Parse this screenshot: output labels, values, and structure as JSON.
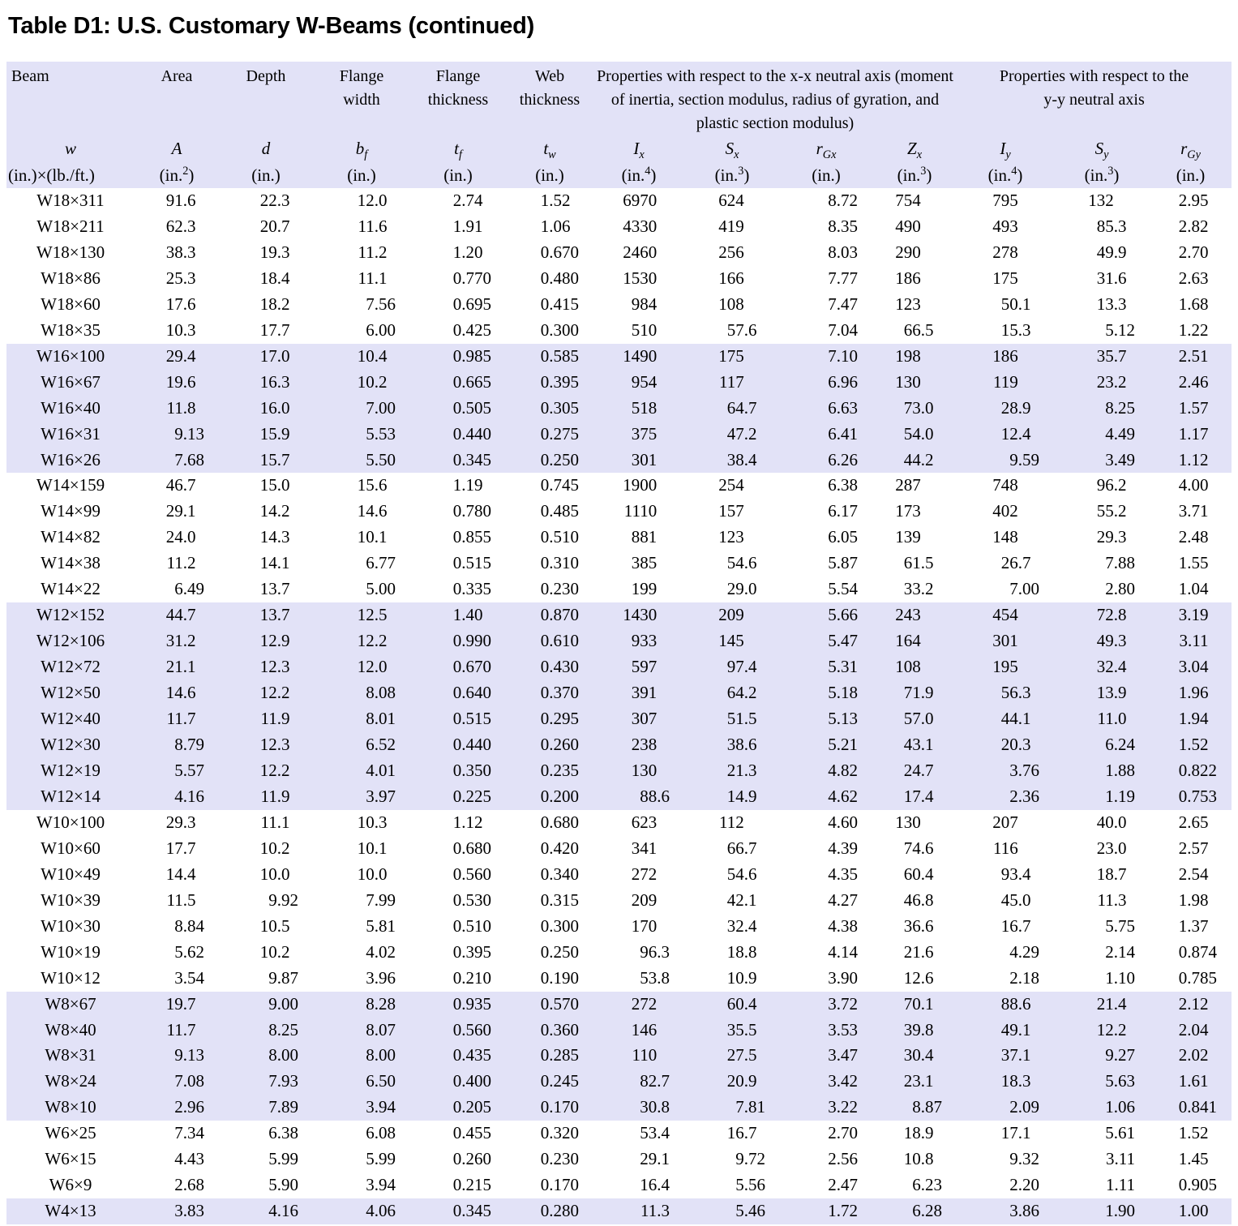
{
  "title": "Table D1: U.S. Customary W-Beams (continued)",
  "colors": {
    "band": "#e2e2f7",
    "text": "#000000",
    "page_background": "#ffffff"
  },
  "table": {
    "group_headers": [
      {
        "label": "Beam"
      },
      {
        "label": "Area"
      },
      {
        "label": "Depth"
      },
      {
        "label": "Flange width"
      },
      {
        "label": "Flange thickness"
      },
      {
        "label": "Web thickness"
      },
      {
        "label": "Properties with respect to the x-x neutral axis (moment of inertia, section modulus, radius of gyration, and plastic section modulus)"
      },
      {
        "label": "Properties with respect to the y-y neutral axis"
      }
    ],
    "columns": [
      {
        "sym": "w",
        "sub": "",
        "unitPre": "(in.)×(lb./ft.)",
        "unitSup": "",
        "unitPost": ""
      },
      {
        "sym": "A",
        "sub": "",
        "unitPre": "(in.",
        "unitSup": "2",
        "unitPost": ")"
      },
      {
        "sym": "d",
        "sub": "",
        "unitPre": "(in.)",
        "unitSup": "",
        "unitPost": ""
      },
      {
        "sym": "b",
        "sub": "f",
        "unitPre": "(in.)",
        "unitSup": "",
        "unitPost": ""
      },
      {
        "sym": "t",
        "sub": "f",
        "unitPre": "(in.)",
        "unitSup": "",
        "unitPost": ""
      },
      {
        "sym": "t",
        "sub": "w",
        "unitPre": "(in.)",
        "unitSup": "",
        "unitPost": ""
      },
      {
        "sym": "I",
        "sub": "x",
        "unitPre": "(in.",
        "unitSup": "4",
        "unitPost": ")"
      },
      {
        "sym": "S",
        "sub": "x",
        "unitPre": "(in.",
        "unitSup": "3",
        "unitPost": ")"
      },
      {
        "sym": "r",
        "sub": "Gx",
        "unitPre": "(in.)",
        "unitSup": "",
        "unitPost": ""
      },
      {
        "sym": "Z",
        "sub": "x",
        "unitPre": "(in.",
        "unitSup": "3",
        "unitPost": ")"
      },
      {
        "sym": "I",
        "sub": "y",
        "unitPre": "(in.",
        "unitSup": "4",
        "unitPost": ")"
      },
      {
        "sym": "S",
        "sub": "y",
        "unitPre": "(in.",
        "unitSup": "3",
        "unitPost": ")"
      },
      {
        "sym": "r",
        "sub": "Gy",
        "unitPre": "(in.)",
        "unitSup": "",
        "unitPost": ""
      }
    ],
    "row_groups": [
      {
        "shaded": false,
        "rows": [
          [
            "W18×311",
            "91.6",
            "22.3",
            "12.0",
            "2.74",
            "1.52",
            "6970",
            "624",
            "8.72",
            "754",
            "795",
            "132",
            "2.95"
          ],
          [
            "W18×211",
            "62.3",
            "20.7",
            "11.6",
            "1.91",
            "1.06",
            "4330",
            "419",
            "8.35",
            "490",
            "493",
            "85.3",
            "2.82"
          ],
          [
            "W18×130",
            "38.3",
            "19.3",
            "11.2",
            "1.20",
            "0.670",
            "2460",
            "256",
            "8.03",
            "290",
            "278",
            "49.9",
            "2.70"
          ],
          [
            "W18×86",
            "25.3",
            "18.4",
            "11.1",
            "0.770",
            "0.480",
            "1530",
            "166",
            "7.77",
            "186",
            "175",
            "31.6",
            "2.63"
          ],
          [
            "W18×60",
            "17.6",
            "18.2",
            "7.56",
            "0.695",
            "0.415",
            "984",
            "108",
            "7.47",
            "123",
            "50.1",
            "13.3",
            "1.68"
          ],
          [
            "W18×35",
            "10.3",
            "17.7",
            "6.00",
            "0.425",
            "0.300",
            "510",
            "57.6",
            "7.04",
            "66.5",
            "15.3",
            "5.12",
            "1.22"
          ]
        ]
      },
      {
        "shaded": true,
        "rows": [
          [
            "W16×100",
            "29.4",
            "17.0",
            "10.4",
            "0.985",
            "0.585",
            "1490",
            "175",
            "7.10",
            "198",
            "186",
            "35.7",
            "2.51"
          ],
          [
            "W16×67",
            "19.6",
            "16.3",
            "10.2",
            "0.665",
            "0.395",
            "954",
            "117",
            "6.96",
            "130",
            "119",
            "23.2",
            "2.46"
          ],
          [
            "W16×40",
            "11.8",
            "16.0",
            "7.00",
            "0.505",
            "0.305",
            "518",
            "64.7",
            "6.63",
            "73.0",
            "28.9",
            "8.25",
            "1.57"
          ],
          [
            "W16×31",
            "9.13",
            "15.9",
            "5.53",
            "0.440",
            "0.275",
            "375",
            "47.2",
            "6.41",
            "54.0",
            "12.4",
            "4.49",
            "1.17"
          ],
          [
            "W16×26",
            "7.68",
            "15.7",
            "5.50",
            "0.345",
            "0.250",
            "301",
            "38.4",
            "6.26",
            "44.2",
            "9.59",
            "3.49",
            "1.12"
          ]
        ]
      },
      {
        "shaded": false,
        "rows": [
          [
            "W14×159",
            "46.7",
            "15.0",
            "15.6",
            "1.19",
            "0.745",
            "1900",
            "254",
            "6.38",
            "287",
            "748",
            "96.2",
            "4.00"
          ],
          [
            "W14×99",
            "29.1",
            "14.2",
            "14.6",
            "0.780",
            "0.485",
            "1110",
            "157",
            "6.17",
            "173",
            "402",
            "55.2",
            "3.71"
          ],
          [
            "W14×82",
            "24.0",
            "14.3",
            "10.1",
            "0.855",
            "0.510",
            "881",
            "123",
            "6.05",
            "139",
            "148",
            "29.3",
            "2.48"
          ],
          [
            "W14×38",
            "11.2",
            "14.1",
            "6.77",
            "0.515",
            "0.310",
            "385",
            "54.6",
            "5.87",
            "61.5",
            "26.7",
            "7.88",
            "1.55"
          ],
          [
            "W14×22",
            "6.49",
            "13.7",
            "5.00",
            "0.335",
            "0.230",
            "199",
            "29.0",
            "5.54",
            "33.2",
            "7.00",
            "2.80",
            "1.04"
          ]
        ]
      },
      {
        "shaded": true,
        "rows": [
          [
            "W12×152",
            "44.7",
            "13.7",
            "12.5",
            "1.40",
            "0.870",
            "1430",
            "209",
            "5.66",
            "243",
            "454",
            "72.8",
            "3.19"
          ],
          [
            "W12×106",
            "31.2",
            "12.9",
            "12.2",
            "0.990",
            "0.610",
            "933",
            "145",
            "5.47",
            "164",
            "301",
            "49.3",
            "3.11"
          ],
          [
            "W12×72",
            "21.1",
            "12.3",
            "12.0",
            "0.670",
            "0.430",
            "597",
            "97.4",
            "5.31",
            "108",
            "195",
            "32.4",
            "3.04"
          ],
          [
            "W12×50",
            "14.6",
            "12.2",
            "8.08",
            "0.640",
            "0.370",
            "391",
            "64.2",
            "5.18",
            "71.9",
            "56.3",
            "13.9",
            "1.96"
          ],
          [
            "W12×40",
            "11.7",
            "11.9",
            "8.01",
            "0.515",
            "0.295",
            "307",
            "51.5",
            "5.13",
            "57.0",
            "44.1",
            "11.0",
            "1.94"
          ],
          [
            "W12×30",
            "8.79",
            "12.3",
            "6.52",
            "0.440",
            "0.260",
            "238",
            "38.6",
            "5.21",
            "43.1",
            "20.3",
            "6.24",
            "1.52"
          ],
          [
            "W12×19",
            "5.57",
            "12.2",
            "4.01",
            "0.350",
            "0.235",
            "130",
            "21.3",
            "4.82",
            "24.7",
            "3.76",
            "1.88",
            "0.822"
          ],
          [
            "W12×14",
            "4.16",
            "11.9",
            "3.97",
            "0.225",
            "0.200",
            "88.6",
            "14.9",
            "4.62",
            "17.4",
            "2.36",
            "1.19",
            "0.753"
          ]
        ]
      },
      {
        "shaded": false,
        "rows": [
          [
            "W10×100",
            "29.3",
            "11.1",
            "10.3",
            "1.12",
            "0.680",
            "623",
            "112",
            "4.60",
            "130",
            "207",
            "40.0",
            "2.65"
          ],
          [
            "W10×60",
            "17.7",
            "10.2",
            "10.1",
            "0.680",
            "0.420",
            "341",
            "66.7",
            "4.39",
            "74.6",
            "116",
            "23.0",
            "2.57"
          ],
          [
            "W10×49",
            "14.4",
            "10.0",
            "10.0",
            "0.560",
            "0.340",
            "272",
            "54.6",
            "4.35",
            "60.4",
            "93.4",
            "18.7",
            "2.54"
          ],
          [
            "W10×39",
            "11.5",
            "9.92",
            "7.99",
            "0.530",
            "0.315",
            "209",
            "42.1",
            "4.27",
            "46.8",
            "45.0",
            "11.3",
            "1.98"
          ],
          [
            "W10×30",
            "8.84",
            "10.5",
            "5.81",
            "0.510",
            "0.300",
            "170",
            "32.4",
            "4.38",
            "36.6",
            "16.7",
            "5.75",
            "1.37"
          ],
          [
            "W10×19",
            "5.62",
            "10.2",
            "4.02",
            "0.395",
            "0.250",
            "96.3",
            "18.8",
            "4.14",
            "21.6",
            "4.29",
            "2.14",
            "0.874"
          ],
          [
            "W10×12",
            "3.54",
            "9.87",
            "3.96",
            "0.210",
            "0.190",
            "53.8",
            "10.9",
            "3.90",
            "12.6",
            "2.18",
            "1.10",
            "0.785"
          ]
        ]
      },
      {
        "shaded": true,
        "rows": [
          [
            "W8×67",
            "19.7",
            "9.00",
            "8.28",
            "0.935",
            "0.570",
            "272",
            "60.4",
            "3.72",
            "70.1",
            "88.6",
            "21.4",
            "2.12"
          ],
          [
            "W8×40",
            "11.7",
            "8.25",
            "8.07",
            "0.560",
            "0.360",
            "146",
            "35.5",
            "3.53",
            "39.8",
            "49.1",
            "12.2",
            "2.04"
          ],
          [
            "W8×31",
            "9.13",
            "8.00",
            "8.00",
            "0.435",
            "0.285",
            "110",
            "27.5",
            "3.47",
            "30.4",
            "37.1",
            "9.27",
            "2.02"
          ],
          [
            "W8×24",
            "7.08",
            "7.93",
            "6.50",
            "0.400",
            "0.245",
            "82.7",
            "20.9",
            "3.42",
            "23.1",
            "18.3",
            "5.63",
            "1.61"
          ],
          [
            "W8×10",
            "2.96",
            "7.89",
            "3.94",
            "0.205",
            "0.170",
            "30.8",
            "7.81",
            "3.22",
            "8.87",
            "2.09",
            "1.06",
            "0.841"
          ]
        ]
      },
      {
        "shaded": false,
        "rows": [
          [
            "W6×25",
            "7.34",
            "6.38",
            "6.08",
            "0.455",
            "0.320",
            "53.4",
            "16.7",
            "2.70",
            "18.9",
            "17.1",
            "5.61",
            "1.52"
          ],
          [
            "W6×15",
            "4.43",
            "5.99",
            "5.99",
            "0.260",
            "0.230",
            "29.1",
            "9.72",
            "2.56",
            "10.8",
            "9.32",
            "3.11",
            "1.45"
          ],
          [
            "W6×9",
            "2.68",
            "5.90",
            "3.94",
            "0.215",
            "0.170",
            "16.4",
            "5.56",
            "2.47",
            "6.23",
            "2.20",
            "1.11",
            "0.905"
          ]
        ]
      },
      {
        "shaded": true,
        "rows": [
          [
            "W4×13",
            "3.83",
            "4.16",
            "4.06",
            "0.345",
            "0.280",
            "11.3",
            "5.46",
            "1.72",
            "6.28",
            "3.86",
            "1.90",
            "1.00"
          ]
        ]
      }
    ]
  }
}
